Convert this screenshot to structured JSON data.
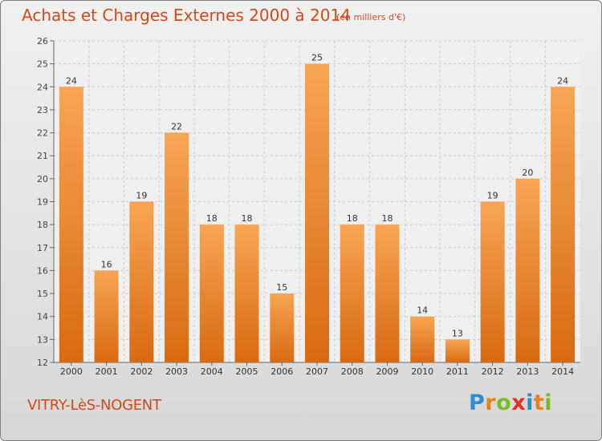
{
  "title": "Achats et Charges Externes 2000 à 2014",
  "subtitle": "(en milliers d'€)",
  "commune": "VITRY-LèS-NOGENT",
  "logo": {
    "text": "Proxiti",
    "colors": [
      "#2a8fd0",
      "#e8801a",
      "#7cb82f",
      "#e8301a",
      "#2a8fd0",
      "#e8801a",
      "#7cb82f"
    ]
  },
  "colors": {
    "bar_light": "#f7a553",
    "bar_dark": "#d96a12",
    "title": "#d24a1a",
    "grid": "#cccccc"
  },
  "chart_data": {
    "type": "bar",
    "categories": [
      "2000",
      "2001",
      "2002",
      "2003",
      "2004",
      "2005",
      "2006",
      "2007",
      "2008",
      "2009",
      "2010",
      "2011",
      "2012",
      "2013",
      "2014"
    ],
    "values": [
      24,
      16,
      19,
      22,
      18,
      18,
      15,
      25,
      18,
      18,
      14,
      13,
      19,
      20,
      24
    ],
    "ylim": [
      12,
      26
    ],
    "yticks": [
      12,
      13,
      14,
      15,
      16,
      17,
      18,
      19,
      20,
      21,
      22,
      23,
      24,
      25,
      26
    ],
    "grid": true,
    "data_labels": true
  }
}
